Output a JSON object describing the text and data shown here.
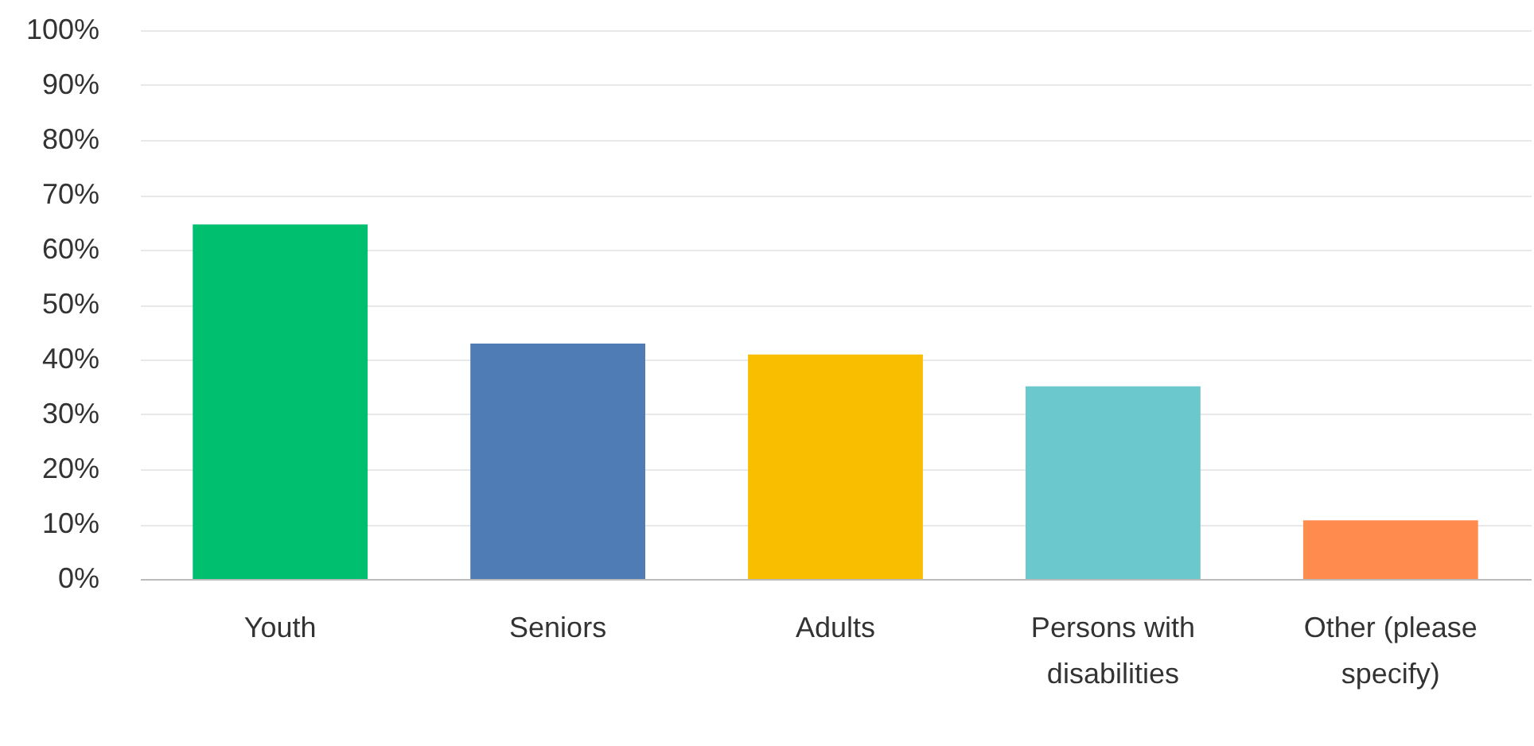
{
  "chart_data": {
    "type": "bar",
    "categories": [
      "Youth",
      "Seniors",
      "Adults",
      "Persons with disabilities",
      "Other (please specify)"
    ],
    "values": [
      64.6,
      42.9,
      40.9,
      35.1,
      10.7
    ],
    "colors": [
      "#00bf6f",
      "#507cb6",
      "#f9be00",
      "#6bc8cd",
      "#ff8b4f"
    ],
    "ylim": [
      0,
      100
    ],
    "yticks": [
      {
        "value": 0,
        "label": "0%"
      },
      {
        "value": 10,
        "label": "10%"
      },
      {
        "value": 20,
        "label": "20%"
      },
      {
        "value": 30,
        "label": "30%"
      },
      {
        "value": 40,
        "label": "40%"
      },
      {
        "value": 50,
        "label": "50%"
      },
      {
        "value": 60,
        "label": "60%"
      },
      {
        "value": 70,
        "label": "70%"
      },
      {
        "value": 80,
        "label": "80%"
      },
      {
        "value": 90,
        "label": "90%"
      },
      {
        "value": 100,
        "label": "100%"
      }
    ],
    "grid": "y"
  }
}
